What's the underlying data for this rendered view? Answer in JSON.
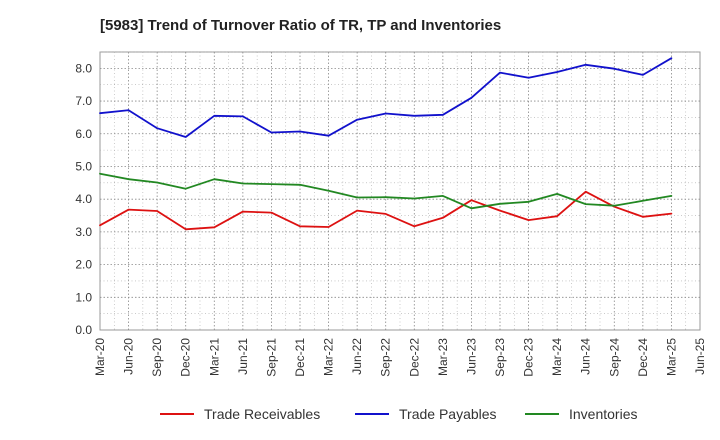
{
  "chart_data": {
    "type": "line",
    "title": "[5983]  Trend of Turnover Ratio of TR, TP and Inventories",
    "xlabel": "",
    "ylabel": "",
    "ylim": [
      0,
      8.5
    ],
    "yticks": [
      "0.0",
      "1.0",
      "2.0",
      "3.0",
      "4.0",
      "5.0",
      "6.0",
      "7.0",
      "8.0"
    ],
    "x_tick_labels": [
      "Mar-20",
      "Jun-20",
      "Sep-20",
      "Dec-20",
      "Mar-21",
      "Jun-21",
      "Sep-21",
      "Dec-21",
      "Mar-22",
      "Jun-22",
      "Sep-22",
      "Dec-22",
      "Mar-23",
      "Jun-23",
      "Sep-23",
      "Dec-23",
      "Mar-24",
      "Jun-24",
      "Sep-24",
      "Dec-24",
      "Mar-25",
      "Jun-25"
    ],
    "categories": [
      "Mar-20",
      "Jun-20",
      "Sep-20",
      "Dec-20",
      "Mar-21",
      "Jun-21",
      "Sep-21",
      "Dec-21",
      "Mar-22",
      "Jun-22",
      "Sep-22",
      "Dec-22",
      "Mar-23",
      "Jun-23",
      "Sep-23",
      "Dec-23",
      "Mar-24",
      "Jun-24",
      "Sep-24",
      "Dec-24",
      "Mar-25"
    ],
    "grid": true,
    "legend_position": "bottom",
    "series": [
      {
        "name": "Trade Receivables",
        "color": "#dd1111",
        "values": [
          3.2,
          3.68,
          3.64,
          3.08,
          3.14,
          3.62,
          3.59,
          3.17,
          3.15,
          3.65,
          3.55,
          3.17,
          3.43,
          3.97,
          3.65,
          3.36,
          3.48,
          4.23,
          3.77,
          3.46,
          3.56
        ]
      },
      {
        "name": "Trade Payables",
        "color": "#1111cc",
        "values": [
          6.63,
          6.72,
          6.17,
          5.9,
          6.55,
          6.53,
          6.04,
          6.07,
          5.94,
          6.43,
          6.62,
          6.55,
          6.58,
          7.1,
          7.87,
          7.71,
          7.89,
          8.11,
          7.99,
          7.8,
          8.31
        ]
      },
      {
        "name": "Inventories",
        "color": "#228822",
        "values": [
          4.78,
          4.61,
          4.51,
          4.32,
          4.61,
          4.48,
          4.46,
          4.44,
          4.26,
          4.05,
          4.06,
          4.02,
          4.1,
          3.72,
          3.86,
          3.92,
          4.16,
          3.85,
          3.8,
          3.95,
          4.1
        ]
      }
    ]
  }
}
